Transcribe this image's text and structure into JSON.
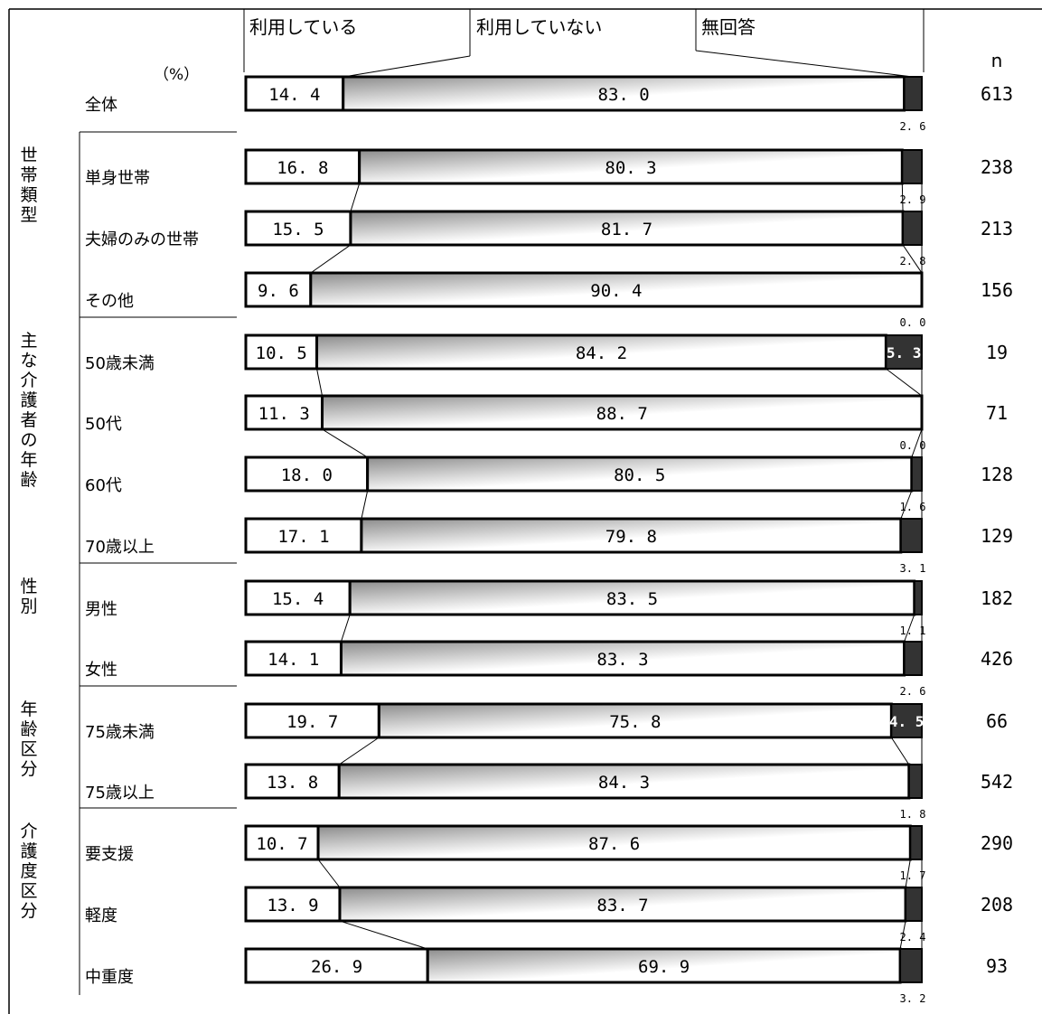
{
  "chart_data": {
    "type": "bar",
    "stacked": true,
    "orientation": "horizontal",
    "xlim": [
      0,
      100
    ],
    "unit_label": "（%）",
    "n_header": "n",
    "legend": [
      "利用している",
      "利用していない",
      "無回答"
    ],
    "colors": {
      "using": "#ffffff",
      "not_using_dark": "#8c8c8c",
      "not_using_light": "#ffffff",
      "no_answer": "#333333",
      "border": "#000000"
    },
    "groups": [
      {
        "label": "",
        "rows": [
          {
            "label": "全体",
            "values": [
              14.4,
              83.0,
              2.6
            ],
            "n": 613
          }
        ]
      },
      {
        "label": "世帯類型",
        "rows": [
          {
            "label": "単身世帯",
            "values": [
              16.8,
              80.3,
              2.9
            ],
            "n": 238
          },
          {
            "label": "夫婦のみの世帯",
            "values": [
              15.5,
              81.7,
              2.8
            ],
            "n": 213
          },
          {
            "label": "その他",
            "values": [
              9.6,
              90.4,
              0.0
            ],
            "n": 156
          }
        ]
      },
      {
        "label": "主な介護者の年齢",
        "rows": [
          {
            "label": "50歳未満",
            "values": [
              10.5,
              84.2,
              5.3
            ],
            "n": 19
          },
          {
            "label": "50代",
            "values": [
              11.3,
              88.7,
              0.0
            ],
            "n": 71
          },
          {
            "label": "60代",
            "values": [
              18.0,
              80.5,
              1.6
            ],
            "n": 128
          },
          {
            "label": "70歳以上",
            "values": [
              17.1,
              79.8,
              3.1
            ],
            "n": 129
          }
        ]
      },
      {
        "label": "性別",
        "rows": [
          {
            "label": "男性",
            "values": [
              15.4,
              83.5,
              1.1
            ],
            "n": 182
          },
          {
            "label": "女性",
            "values": [
              14.1,
              83.3,
              2.6
            ],
            "n": 426
          }
        ]
      },
      {
        "label": "年齢区分",
        "rows": [
          {
            "label": "75歳未満",
            "values": [
              19.7,
              75.8,
              4.5
            ],
            "n": 66
          },
          {
            "label": "75歳以上",
            "values": [
              13.8,
              84.3,
              1.8
            ],
            "n": 542
          }
        ]
      },
      {
        "label": "介護度区分",
        "rows": [
          {
            "label": "要支援",
            "values": [
              10.7,
              87.6,
              1.7
            ],
            "n": 290
          },
          {
            "label": "軽度",
            "values": [
              13.9,
              83.7,
              2.4
            ],
            "n": 208
          },
          {
            "label": "中重度",
            "values": [
              26.9,
              69.9,
              3.2
            ],
            "n": 93
          }
        ]
      }
    ]
  }
}
